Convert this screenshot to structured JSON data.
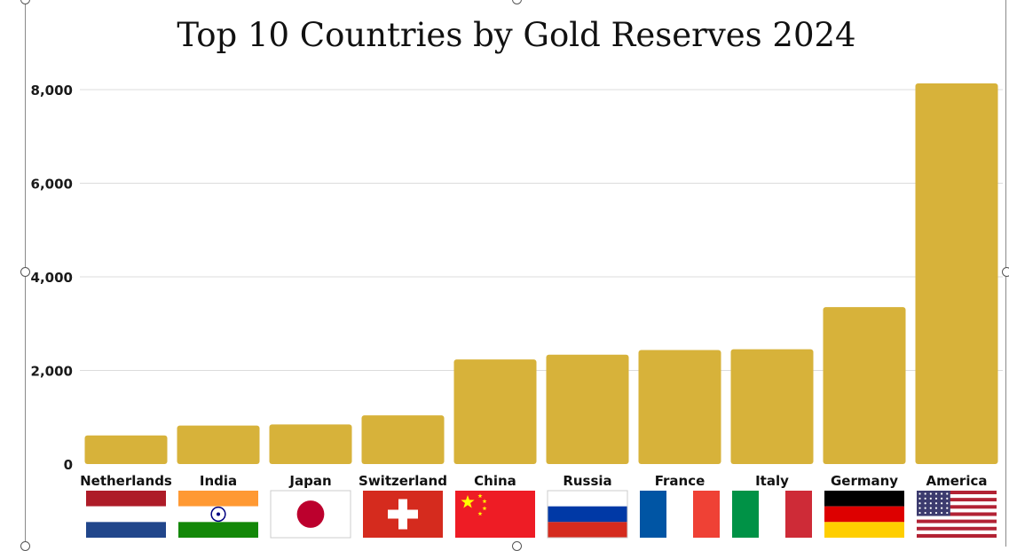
{
  "chart_data": {
    "type": "bar",
    "title": "Top 10 Countries by Gold Reserves 2024",
    "xlabel": "",
    "ylabel": "",
    "ylim": [
      0,
      8000
    ],
    "yticks": [
      0,
      2000,
      4000,
      6000,
      8000
    ],
    "ytick_labels": [
      "0",
      "2,000",
      "4,000",
      "6,000",
      "8,000"
    ],
    "grid": true,
    "bar_color": "#d7b23a",
    "categories": [
      "Netherlands",
      "India",
      "Japan",
      "Switzerland",
      "China",
      "Russia",
      "France",
      "Italy",
      "Germany",
      "America"
    ],
    "values": [
      612,
      823,
      846,
      1040,
      2235,
      2336,
      2437,
      2452,
      3352,
      8133
    ],
    "flags": [
      "netherlands-flag",
      "india-flag",
      "japan-flag",
      "switzerland-flag",
      "china-flag",
      "russia-flag",
      "france-flag",
      "italy-flag",
      "germany-flag",
      "usa-flag"
    ]
  }
}
